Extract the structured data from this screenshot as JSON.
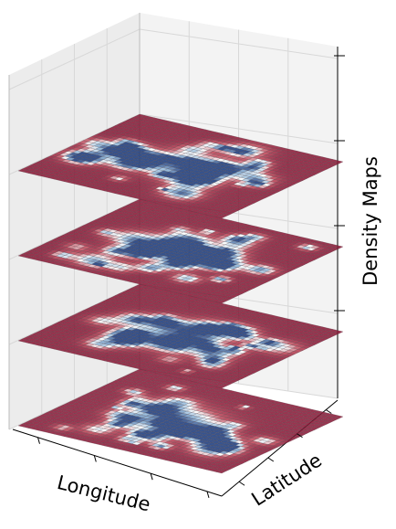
{
  "chart_data": {
    "type": "heatmap",
    "title": "",
    "xlabel": "Longitude",
    "ylabel": "Latitude",
    "zlabel": "Density Maps",
    "layer_count": 4,
    "grid_resolution": [
      40,
      30
    ],
    "colormap": "RdBu",
    "colormap_stops": [
      "#8c1a38",
      "#c2485a",
      "#ffffff",
      "#8fb8dc",
      "#1d3d7f"
    ],
    "panes": {
      "background": "#f2f2f2",
      "grid": true
    },
    "x_ticks": 4,
    "y_ticks": 4,
    "z_ticks": 4
  }
}
